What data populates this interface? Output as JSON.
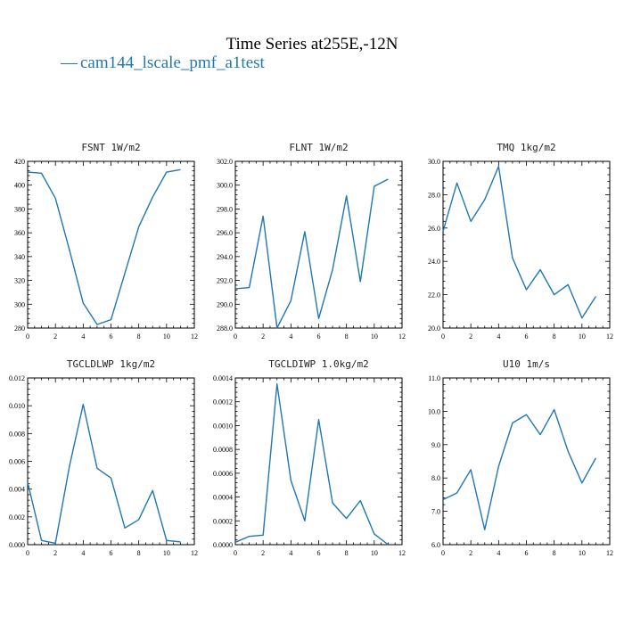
{
  "figure": {
    "title": "Time Series at255E,-12N",
    "legend_label": "cam144_lscale_pmf_a1test",
    "legend_line": "—",
    "line_color": "#1f77b4"
  },
  "chart_data": [
    {
      "type": "line",
      "title": "FSNT   1W/m2",
      "x": [
        0,
        1,
        2,
        3,
        4,
        5,
        6,
        7,
        8,
        9,
        10,
        11
      ],
      "series": [
        {
          "name": "cam144_lscale_pmf_a1test",
          "values": [
            411,
            410,
            389,
            346,
            301,
            283,
            287,
            326,
            365,
            390,
            411,
            413
          ]
        }
      ],
      "xlim": [
        0,
        12
      ],
      "ylim": [
        280,
        420
      ],
      "xticks": [
        0,
        2,
        4,
        6,
        8,
        10,
        12
      ],
      "yticks": [
        280,
        300,
        320,
        340,
        360,
        380,
        400,
        420
      ],
      "ytick_labels": [
        "280",
        "300",
        "320",
        "340",
        "360",
        "380",
        "400",
        "420"
      ],
      "xtick_labels": [
        "0",
        "2",
        "4",
        "6",
        "8",
        "10",
        "12"
      ]
    },
    {
      "type": "line",
      "title": "FLNT   1W/m2",
      "x": [
        0,
        1,
        2,
        3,
        4,
        5,
        6,
        7,
        8,
        9,
        10,
        11
      ],
      "series": [
        {
          "name": "cam144_lscale_pmf_a1test",
          "values": [
            291.3,
            291.4,
            297.4,
            288.0,
            290.3,
            296.1,
            288.8,
            292.9,
            299.1,
            291.9,
            299.9,
            300.5
          ]
        }
      ],
      "xlim": [
        0,
        12
      ],
      "ylim": [
        288,
        302
      ],
      "xticks": [
        0,
        2,
        4,
        6,
        8,
        10,
        12
      ],
      "yticks": [
        288,
        290,
        292,
        294,
        296,
        298,
        300,
        302
      ],
      "ytick_labels": [
        "288.0",
        "290.0",
        "292.0",
        "294.0",
        "296.0",
        "298.0",
        "300.0",
        "302.0"
      ],
      "xtick_labels": [
        "0",
        "2",
        "4",
        "6",
        "8",
        "10",
        "12"
      ]
    },
    {
      "type": "line",
      "title": "TMQ   1kg/m2",
      "x": [
        0,
        1,
        2,
        3,
        4,
        5,
        6,
        7,
        8,
        9,
        10,
        11
      ],
      "series": [
        {
          "name": "cam144_lscale_pmf_a1test",
          "values": [
            25.8,
            28.7,
            26.4,
            27.7,
            29.7,
            24.2,
            22.3,
            23.5,
            22.0,
            22.6,
            20.6,
            21.9
          ]
        }
      ],
      "xlim": [
        0,
        12
      ],
      "ylim": [
        20,
        30
      ],
      "xticks": [
        0,
        2,
        4,
        6,
        8,
        10,
        12
      ],
      "yticks": [
        20,
        22,
        24,
        26,
        28,
        30
      ],
      "ytick_labels": [
        "20.0",
        "22.0",
        "24.0",
        "26.0",
        "28.0",
        "30.0"
      ],
      "xtick_labels": [
        "0",
        "2",
        "4",
        "6",
        "8",
        "10",
        "12"
      ]
    },
    {
      "type": "line",
      "title": "TGCLDLWP   1kg/m2",
      "x": [
        0,
        1,
        2,
        3,
        4,
        5,
        6,
        7,
        8,
        9,
        10,
        11
      ],
      "series": [
        {
          "name": "cam144_lscale_pmf_a1test",
          "values": [
            0.0045,
            0.0003,
            0.0001,
            0.0056,
            0.0101,
            0.0055,
            0.0048,
            0.0012,
            0.0018,
            0.0039,
            0.0003,
            0.0002
          ]
        }
      ],
      "xlim": [
        0,
        12
      ],
      "ylim": [
        0,
        0.012
      ],
      "xticks": [
        0,
        2,
        4,
        6,
        8,
        10,
        12
      ],
      "yticks": [
        0,
        0.002,
        0.004,
        0.006,
        0.008,
        0.01,
        0.012
      ],
      "ytick_labels": [
        "0.000",
        "0.002",
        "0.004",
        "0.006",
        "0.008",
        "0.010",
        "0.012"
      ],
      "xtick_labels": [
        "0",
        "2",
        "4",
        "6",
        "8",
        "10",
        "12"
      ]
    },
    {
      "type": "line",
      "title": "TGCLDIWP   1.0kg/m2",
      "x": [
        0,
        1,
        2,
        3,
        4,
        5,
        6,
        7,
        8,
        9,
        10,
        11
      ],
      "series": [
        {
          "name": "cam144_lscale_pmf_a1test",
          "values": [
            2e-05,
            7e-05,
            8e-05,
            0.00135,
            0.00054,
            0.0002,
            0.00105,
            0.00035,
            0.00022,
            0.00037,
            9e-05,
            0.0
          ]
        }
      ],
      "xlim": [
        0,
        12
      ],
      "ylim": [
        0,
        0.0014
      ],
      "xticks": [
        0,
        2,
        4,
        6,
        8,
        10,
        12
      ],
      "yticks": [
        0,
        0.0002,
        0.0004,
        0.0006,
        0.0008,
        0.001,
        0.0012,
        0.0014
      ],
      "ytick_labels": [
        "0.0000",
        "0.0002",
        "0.0004",
        "0.0006",
        "0.0008",
        "0.0010",
        "0.0012",
        "0.0014"
      ],
      "xtick_labels": [
        "0",
        "2",
        "4",
        "6",
        "8",
        "10",
        "12"
      ]
    },
    {
      "type": "line",
      "title": "U10   1m/s",
      "x": [
        0,
        1,
        2,
        3,
        4,
        5,
        6,
        7,
        8,
        9,
        10,
        11
      ],
      "series": [
        {
          "name": "cam144_lscale_pmf_a1test",
          "values": [
            7.35,
            7.55,
            8.25,
            6.45,
            8.35,
            9.65,
            9.9,
            9.3,
            10.05,
            8.8,
            7.85,
            8.6
          ]
        }
      ],
      "xlim": [
        0,
        12
      ],
      "ylim": [
        6,
        11
      ],
      "xticks": [
        0,
        2,
        4,
        6,
        8,
        10,
        12
      ],
      "yticks": [
        6,
        7,
        8,
        9,
        10,
        11
      ],
      "ytick_labels": [
        "6.0",
        "7.0",
        "8.0",
        "9.0",
        "10.0",
        "11.0"
      ],
      "xtick_labels": [
        "0",
        "2",
        "4",
        "6",
        "8",
        "10",
        "12"
      ]
    }
  ]
}
